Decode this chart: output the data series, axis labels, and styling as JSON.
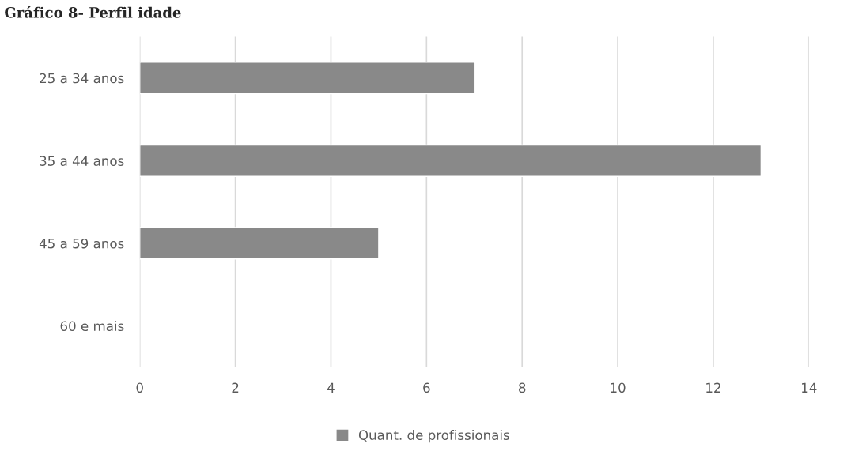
{
  "chart_data": {
    "type": "bar",
    "orientation": "horizontal",
    "title": "Gráfico 8- Perfil idade",
    "categories": [
      "25 a 34 anos",
      "35 a 44 anos",
      "45 a 59 anos",
      "60 e mais"
    ],
    "series": [
      {
        "name": "Quant. de profissionais",
        "color": "#898989",
        "values": [
          7,
          13,
          5,
          0
        ]
      }
    ],
    "xlim": [
      0,
      14
    ],
    "xticks": [
      0,
      2,
      4,
      6,
      8,
      10,
      12,
      14
    ],
    "grid": "x",
    "legend": "bottom"
  }
}
